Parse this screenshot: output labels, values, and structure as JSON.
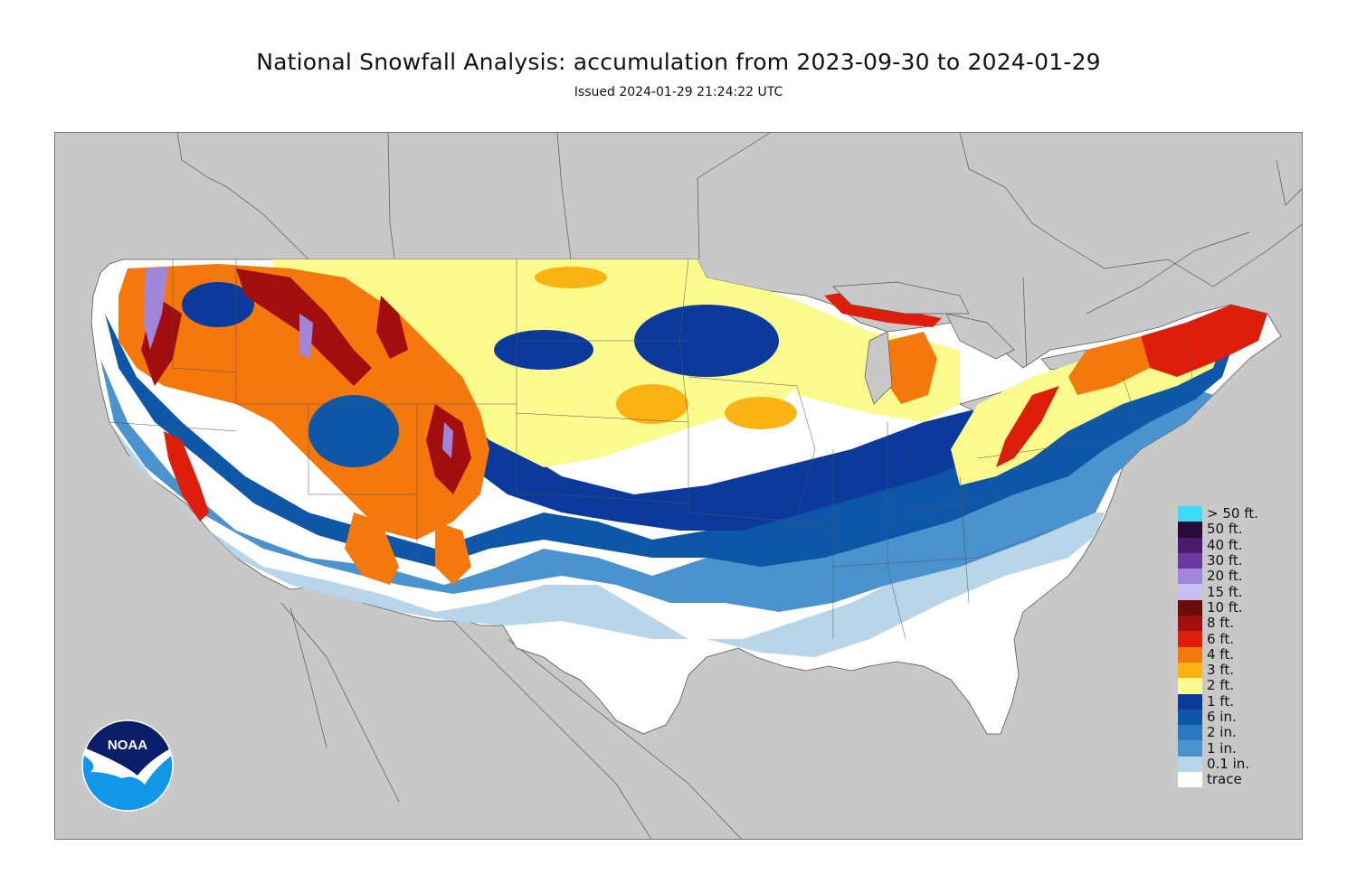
{
  "header": {
    "title": "National Snowfall Analysis: accumulation from 2023-09-30 to 2024-01-29",
    "issued": "Issued 2024-01-29 21:24:22 UTC"
  },
  "map": {
    "background_color": "#c8c8c8",
    "land_outside_color": "#c8c8c8",
    "no_snow_color": "#ffffff"
  },
  "legend": {
    "items": [
      {
        "label": "> 50 ft.",
        "color": "#3ddcf5"
      },
      {
        "label": "50 ft.",
        "color": "#2a0a3a"
      },
      {
        "label": "40 ft.",
        "color": "#4b1a6e"
      },
      {
        "label": "30 ft.",
        "color": "#6a3aa0"
      },
      {
        "label": "20 ft.",
        "color": "#9f86d8"
      },
      {
        "label": "15 ft.",
        "color": "#c9c0f2"
      },
      {
        "label": "10 ft.",
        "color": "#6b0a0a"
      },
      {
        "label": "8 ft.",
        "color": "#a20d0d"
      },
      {
        "label": "6 ft.",
        "color": "#de1e0b"
      },
      {
        "label": "4 ft.",
        "color": "#f5780c"
      },
      {
        "label": "3 ft.",
        "color": "#fbb314"
      },
      {
        "label": "2 ft.",
        "color": "#fbfa8c"
      },
      {
        "label": "1 ft.",
        "color": "#0c3a9c"
      },
      {
        "label": "6 in.",
        "color": "#0d56a8"
      },
      {
        "label": "2 in.",
        "color": "#2a78c2"
      },
      {
        "label": "1 in.",
        "color": "#4b93cf"
      },
      {
        "label": "0.1 in.",
        "color": "#b8d5ea"
      },
      {
        "label": "trace",
        "color": "#ffffff"
      }
    ]
  },
  "logo": {
    "text": "NOAA",
    "colors": {
      "top": "#0a1e6b",
      "bottom": "#1296e8",
      "bird": "#ffffff"
    }
  }
}
